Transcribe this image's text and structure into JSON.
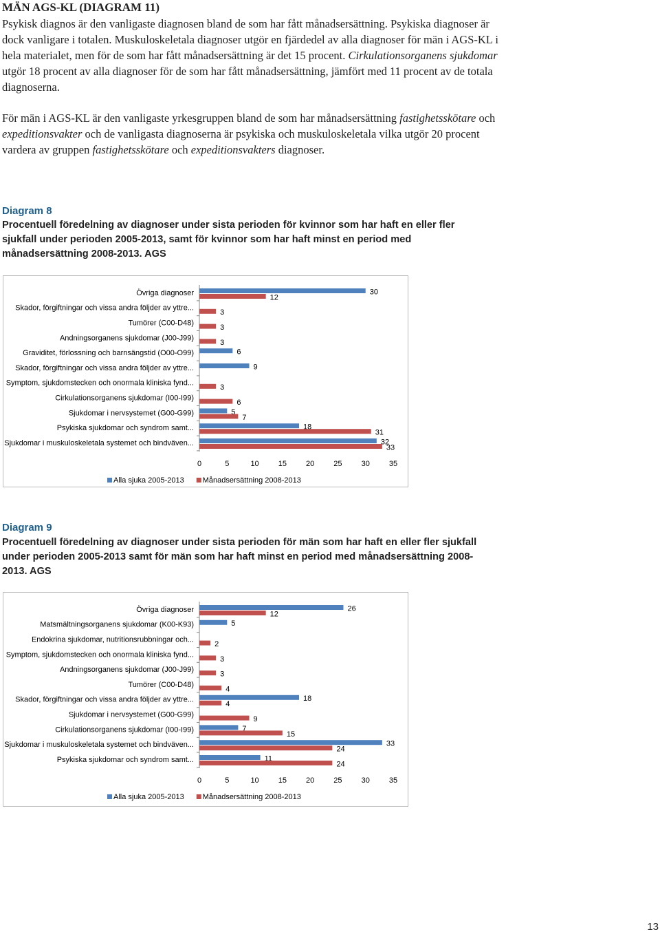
{
  "header": {
    "title": "MÄN AGS-KL (DIAGRAM 11)"
  },
  "paragraphs": [
    {
      "runs": [
        {
          "text": "Psykisk diagnos är den vanligaste diagnosen bland de som har fått månadsersättning. Psykiska diagnoser är dock vanligare i totalen. Muskuloskeletala diagnoser utgör en fjärdedel av alla diagnoser för män i AGS-KL i hela materialet, men för de som har fått månadsersättning är det 15 procent. ",
          "italic": false
        },
        {
          "text": "Cirkulationsorganens sjukdomar",
          "italic": true
        },
        {
          "text": " utgör 18 procent av alla diagnoser för de som har fått månadsersättning, jämfört med 11 procent av de totala diagnoserna.",
          "italic": false
        }
      ]
    },
    {
      "runs": [
        {
          "text": "För män i AGS-KL är den vanligaste yrkesgruppen bland de som har månadsersättning ",
          "italic": false
        },
        {
          "text": "fastighetsskötare",
          "italic": true
        },
        {
          "text": " och ",
          "italic": false
        },
        {
          "text": "expeditionsvakter",
          "italic": true
        },
        {
          "text": " och de vanligasta diagnoserna är psykiska och muskuloskeletala vilka utgör 20 procent vardera av gruppen ",
          "italic": false
        },
        {
          "text": "fastighetsskötare",
          "italic": true
        },
        {
          "text": " och ",
          "italic": false
        },
        {
          "text": "expeditionsvakters",
          "italic": true
        },
        {
          "text": " diagnoser.",
          "italic": false
        }
      ]
    }
  ],
  "diagrams": [
    {
      "label": "Diagram 8",
      "caption": "Procentuell föredelning av diagnoser under sista perioden för kvinnor som har haft en eller fler sjukfall under perioden 2005-2013, samt för kvinnor som har haft minst en period med månadsersättning 2008-2013. AGS"
    },
    {
      "label": "Diagram 9",
      "caption": "Procentuell föredelning av diagnoser under sista perioden för män som har haft en eller fler sjukfall under perioden 2005-2013 samt för män som har haft minst en period med månadsersättning 2008-2013. AGS"
    }
  ],
  "chart_data": [
    {
      "type": "bar",
      "orientation": "horizontal",
      "data_labels": true,
      "legend": "bottom",
      "categories": [
        "Övriga diagnoser",
        "Skador, förgiftningar och vissa andra följder av yttre...",
        "Tumörer (C00-D48)",
        "Andningsorganens sjukdomar (J00-J99)",
        "Graviditet, förlossning och barnsängstid (O00-O99)",
        "Skador, förgiftningar och vissa andra följder av yttre...",
        "Symptom, sjukdomstecken och onormala kliniska fynd...",
        "Cirkulationsorganens sjukdomar (I00-I99)",
        "Sjukdomar i nervsystemet (G00-G99)",
        "Psykiska sjukdomar och syndrom samt...",
        "Sjukdomar i muskuloskeletala systemet och bindväven..."
      ],
      "series": [
        {
          "name": "Alla sjuka 2005-2013",
          "color": "#4f81bd",
          "values": [
            30,
            null,
            null,
            null,
            6,
            9,
            null,
            null,
            5,
            18,
            32
          ]
        },
        {
          "name": "Månadsersättning 2008-2013",
          "color": "#c0504d",
          "values": [
            12,
            3,
            3,
            3,
            null,
            null,
            3,
            6,
            7,
            31,
            33
          ]
        }
      ],
      "xlim": [
        0,
        35
      ],
      "xticks": [
        0,
        5,
        10,
        15,
        20,
        25,
        30,
        35
      ]
    },
    {
      "type": "bar",
      "orientation": "horizontal",
      "data_labels": true,
      "legend": "bottom",
      "categories": [
        "Övriga diagnoser",
        "Matsmältningsorganens sjukdomar (K00-K93)",
        "Endokrina sjukdomar, nutritionsrubbningar och...",
        "Symptom, sjukdomstecken och onormala kliniska fynd...",
        "Andningsorganens sjukdomar (J00-J99)",
        "Tumörer (C00-D48)",
        "Skador, förgiftningar och vissa andra följder av yttre...",
        "Sjukdomar i nervsystemet (G00-G99)",
        "Cirkulationsorganens sjukdomar (I00-I99)",
        "Sjukdomar i muskuloskeletala systemet och bindväven...",
        "Psykiska sjukdomar och syndrom samt..."
      ],
      "series": [
        {
          "name": "Alla sjuka 2005-2013",
          "color": "#4f81bd",
          "values": [
            26,
            5,
            null,
            null,
            null,
            null,
            18,
            null,
            7,
            33,
            11
          ]
        },
        {
          "name": "Månadsersättning 2008-2013",
          "color": "#c0504d",
          "values": [
            12,
            null,
            2,
            3,
            3,
            4,
            4,
            9,
            15,
            24,
            24
          ]
        }
      ],
      "xlim": [
        0,
        35
      ],
      "xticks": [
        0,
        5,
        10,
        15,
        20,
        25,
        30,
        35
      ]
    }
  ],
  "page_number": "13"
}
